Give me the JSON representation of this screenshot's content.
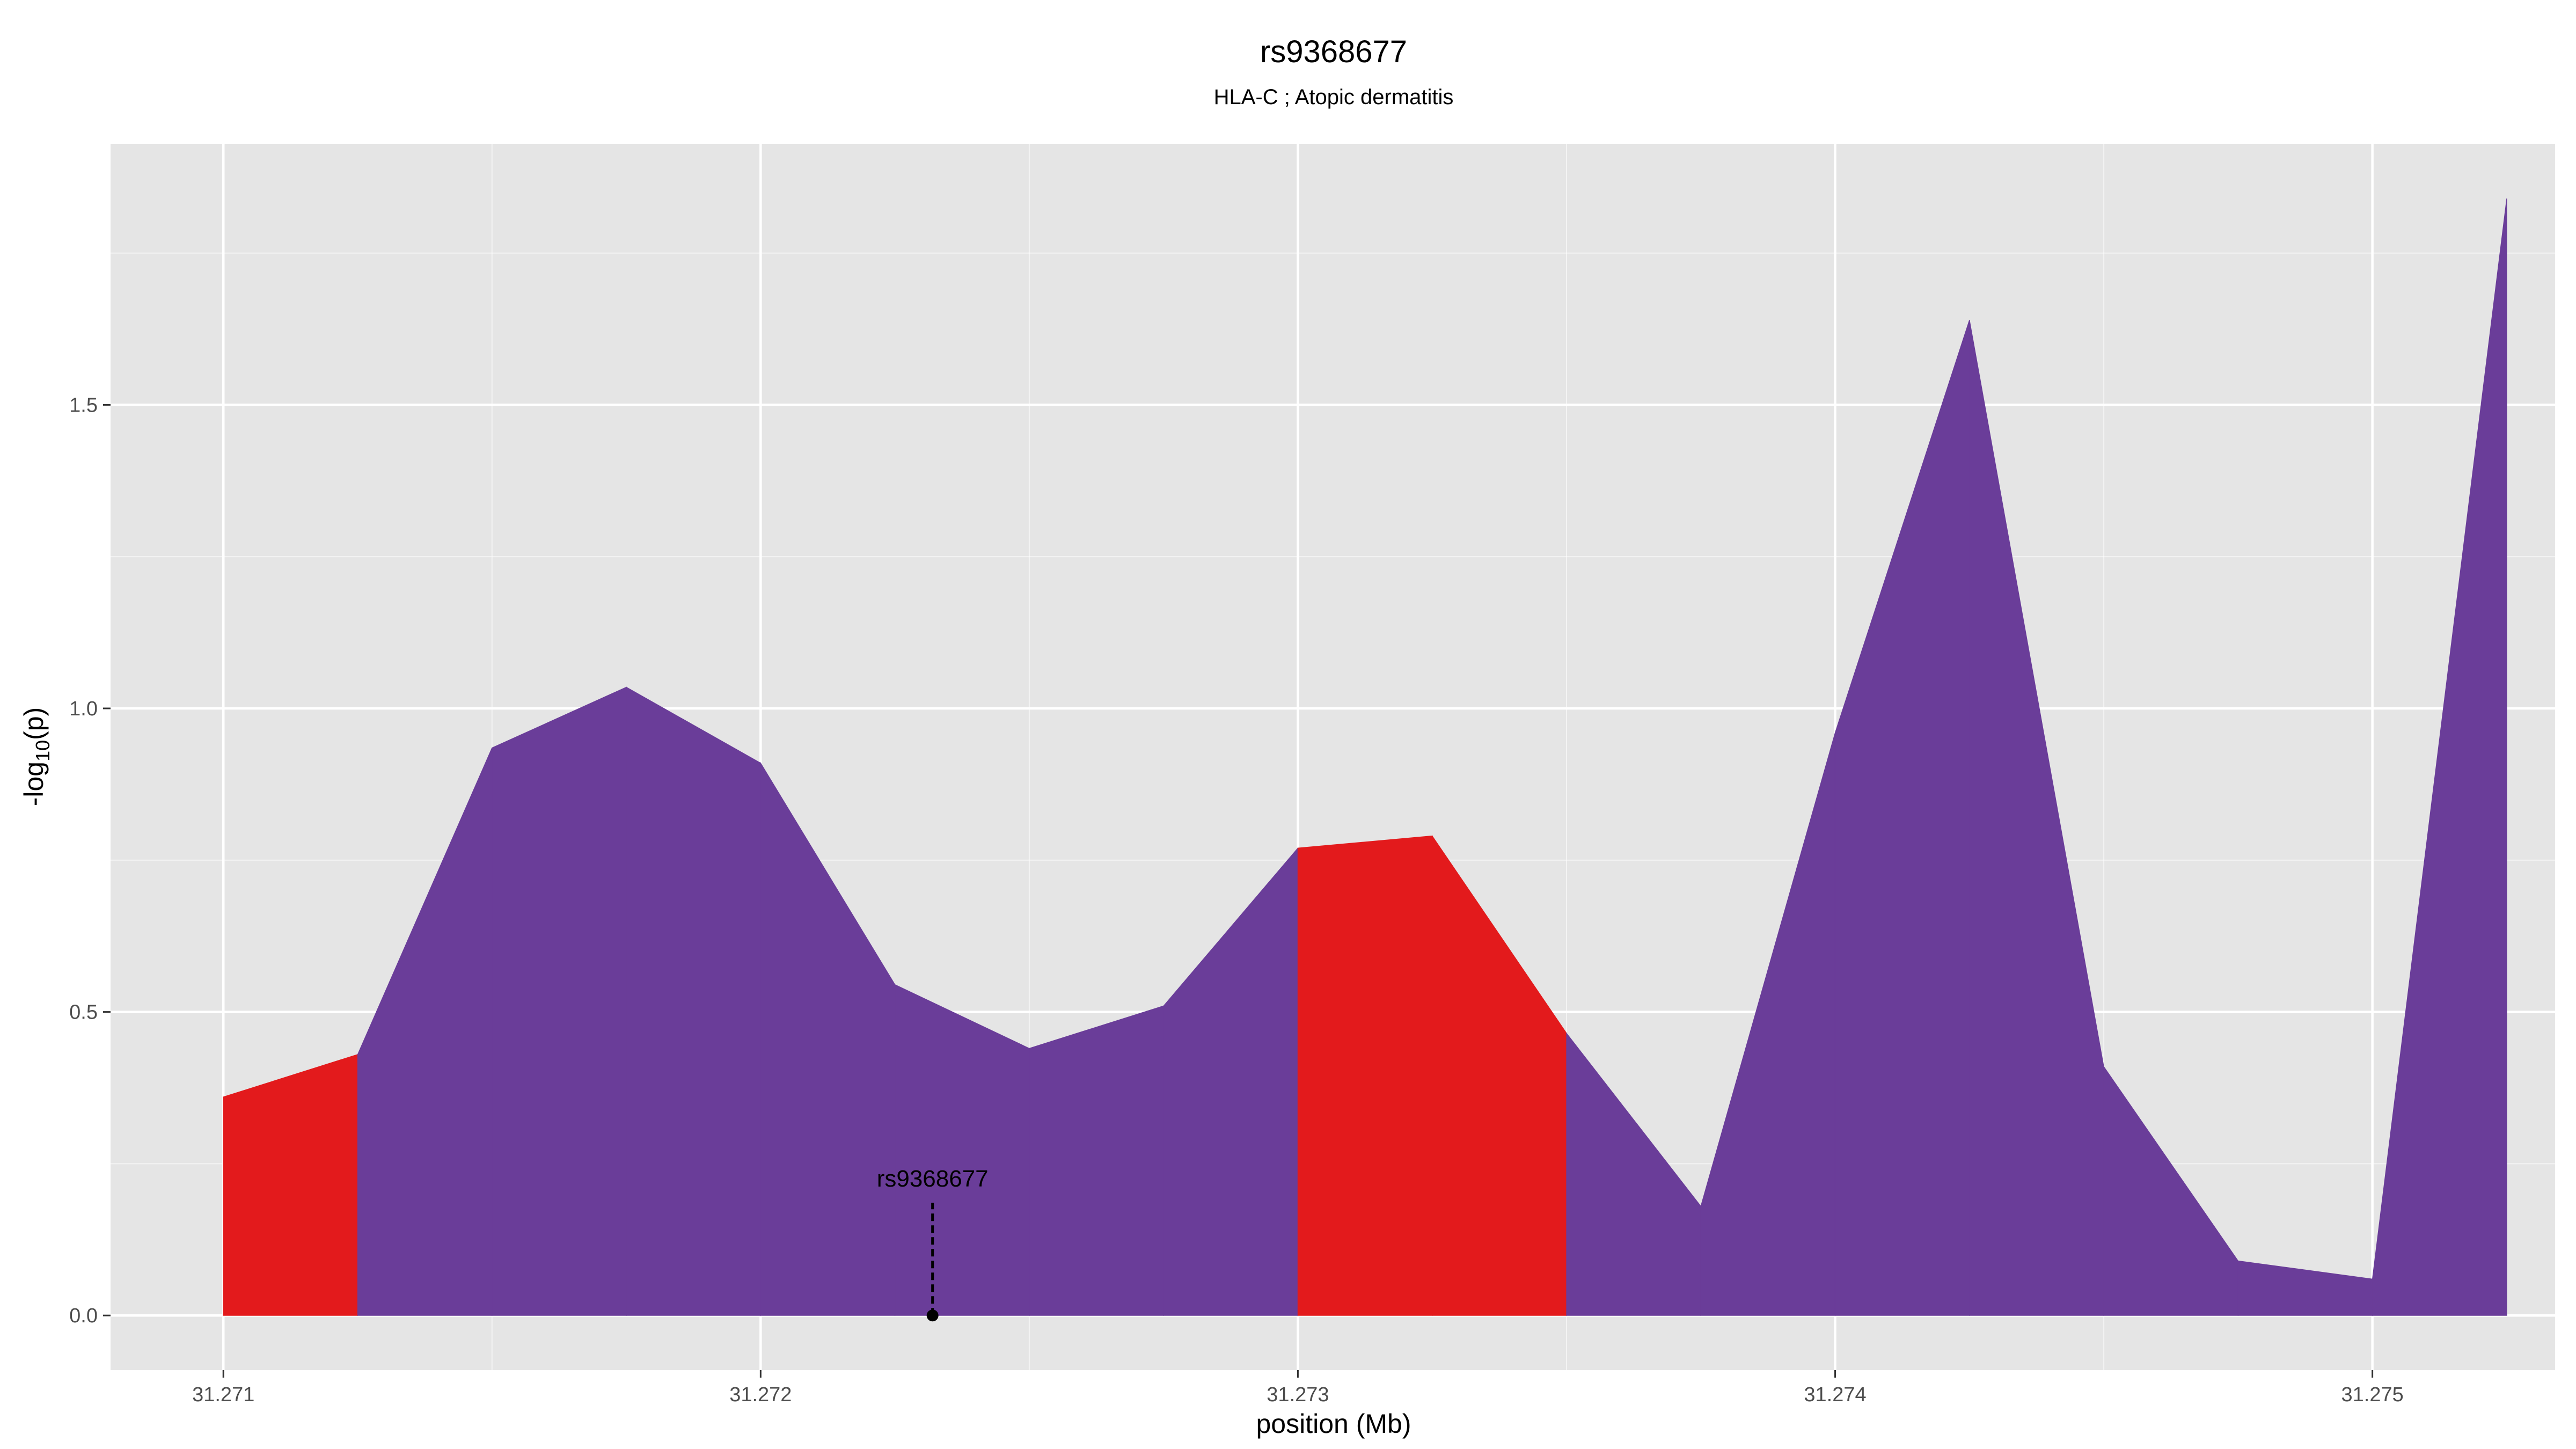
{
  "chart_data": {
    "type": "area",
    "title": "rs9368677",
    "subtitle": "HLA-C ; Atopic dermatitis",
    "xlabel": "position (Mb)",
    "ylabel": "-log10(p)",
    "ylabel_parts": {
      "base": "-log",
      "sub": "10",
      "rest": "(p)"
    },
    "xlim": [
      31.27079,
      31.27534
    ],
    "ylim": [
      -0.09,
      1.93
    ],
    "x_ticks": [
      31.271,
      31.272,
      31.273,
      31.274,
      31.275
    ],
    "x_tick_labels": [
      "31.271",
      "31.272",
      "31.273",
      "31.274",
      "31.275"
    ],
    "y_ticks": [
      0.0,
      0.5,
      1.0,
      1.5
    ],
    "y_tick_labels": [
      "0.0",
      "0.5",
      "1.0",
      "1.5"
    ],
    "grid": true,
    "legend": "none",
    "panel_color": "#e5e5e5",
    "grid_color": "#ffffff",
    "colors": {
      "purple": "#6a3d99",
      "red": "#e31a1c"
    },
    "x": [
      31.271,
      31.27125,
      31.2715,
      31.27175,
      31.272,
      31.27225,
      31.2725,
      31.27275,
      31.273,
      31.27325,
      31.2735,
      31.27375,
      31.274,
      31.27425,
      31.2745,
      31.27475,
      31.275,
      31.27525
    ],
    "y": [
      0.36,
      0.43,
      0.935,
      1.035,
      0.91,
      0.545,
      0.44,
      0.51,
      0.77,
      0.79,
      0.465,
      0.18,
      0.96,
      1.64,
      0.41,
      0.09,
      0.06,
      1.84
    ],
    "segment_colors": [
      "red",
      "purple",
      "purple",
      "purple",
      "purple",
      "purple",
      "purple",
      "purple",
      "red",
      "red",
      "purple",
      "purple",
      "purple",
      "purple",
      "purple",
      "purple",
      "purple"
    ],
    "annotation": {
      "label": "rs9368677",
      "x": 31.27232,
      "y": 0.0
    }
  }
}
